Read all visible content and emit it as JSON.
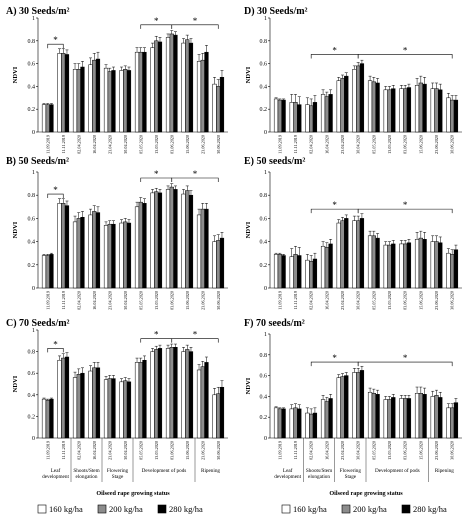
{
  "legend": [
    {
      "label": "160 kg/ha",
      "color": "#ffffff"
    },
    {
      "label": "200 kg/ha",
      "color": "#8c8c8c"
    },
    {
      "label": "280 kg/ha",
      "color": "#000000"
    }
  ],
  "chart_data": [
    {
      "type": "bar",
      "title": "A) 30 Seeds/m²",
      "ylabel": "NDVI",
      "ylim": [
        0,
        1
      ],
      "categories": [
        "11.09.2019",
        "11.11.2019",
        "02.04.2020",
        "16.04.2020",
        "23.04.2020",
        "30.04.2020",
        "05.05.2020",
        "13.05.2020",
        "03.06.2020",
        "15.06.2020",
        "23.06.2020",
        "30.06.2020"
      ],
      "series": [
        {
          "name": "160 kg/ha",
          "values": [
            0.24,
            0.69,
            0.55,
            0.59,
            0.56,
            0.54,
            0.7,
            0.74,
            0.83,
            0.78,
            0.62,
            0.42
          ]
        },
        {
          "name": "200 kg/ha",
          "values": [
            0.24,
            0.69,
            0.55,
            0.63,
            0.53,
            0.55,
            0.7,
            0.8,
            0.86,
            0.81,
            0.63,
            0.4
          ]
        },
        {
          "name": "280 kg/ha",
          "values": [
            0.24,
            0.68,
            0.57,
            0.64,
            0.54,
            0.54,
            0.7,
            0.79,
            0.85,
            0.78,
            0.7,
            0.48
          ]
        }
      ],
      "errors": [
        0.01,
        0.04,
        0.05,
        0.06,
        0.03,
        0.03,
        0.04,
        0.04,
        0.03,
        0.04,
        0.06,
        0.06
      ],
      "annotations": [
        {
          "from": 0,
          "to": 1,
          "text": "*"
        },
        {
          "from": 6,
          "to": 8,
          "text": "*"
        },
        {
          "from": 8,
          "to": 11,
          "text": "*"
        }
      ]
    },
    {
      "type": "bar",
      "title": "B) 50 Seeds/m²",
      "ylabel": "NDVI",
      "ylim": [
        0,
        1
      ],
      "categories": [
        "11.09.2019",
        "11.11.2019",
        "02.04.2020",
        "16.04.2020",
        "23.04.2020",
        "30.04.2020",
        "05.05.2020",
        "13.05.2020",
        "03.06.2020",
        "15.06.2020",
        "23.06.2020",
        "30.06.2020"
      ],
      "series": [
        {
          "name": "160 kg/ha",
          "values": [
            0.28,
            0.73,
            0.57,
            0.63,
            0.54,
            0.56,
            0.7,
            0.82,
            0.85,
            0.81,
            0.63,
            0.4
          ]
        },
        {
          "name": "200 kg/ha",
          "values": [
            0.28,
            0.73,
            0.6,
            0.66,
            0.55,
            0.57,
            0.74,
            0.83,
            0.87,
            0.84,
            0.68,
            0.41
          ]
        },
        {
          "name": "280 kg/ha",
          "values": [
            0.29,
            0.71,
            0.61,
            0.65,
            0.55,
            0.56,
            0.73,
            0.82,
            0.85,
            0.8,
            0.68,
            0.43
          ]
        }
      ],
      "errors": [
        0.01,
        0.04,
        0.05,
        0.05,
        0.03,
        0.03,
        0.04,
        0.03,
        0.03,
        0.04,
        0.05,
        0.05
      ],
      "annotations": [
        {
          "from": 0,
          "to": 1,
          "text": "*"
        },
        {
          "from": 6,
          "to": 8,
          "text": "*"
        },
        {
          "from": 8,
          "to": 11,
          "text": "*"
        }
      ]
    },
    {
      "type": "bar",
      "title": "C) 70 Seeds/m²",
      "ylabel": "NDVI",
      "ylim": [
        0,
        1
      ],
      "categories": [
        "11.09.2019",
        "11.11.2019",
        "02.04.2020",
        "16.04.2020",
        "23.04.2020",
        "30.04.2020",
        "05.05.2020",
        "13.05.2020",
        "03.06.2020",
        "15.06.2020",
        "23.06.2020",
        "30.06.2020"
      ],
      "series": [
        {
          "name": "160 kg/ha",
          "values": [
            0.36,
            0.72,
            0.56,
            0.62,
            0.54,
            0.52,
            0.7,
            0.8,
            0.83,
            0.8,
            0.63,
            0.4
          ]
        },
        {
          "name": "200 kg/ha",
          "values": [
            0.35,
            0.74,
            0.59,
            0.65,
            0.55,
            0.53,
            0.7,
            0.82,
            0.84,
            0.82,
            0.66,
            0.41
          ]
        },
        {
          "name": "280 kg/ha",
          "values": [
            0.36,
            0.75,
            0.6,
            0.65,
            0.55,
            0.52,
            0.72,
            0.83,
            0.84,
            0.8,
            0.7,
            0.47
          ]
        }
      ],
      "errors": [
        0.01,
        0.04,
        0.05,
        0.05,
        0.03,
        0.03,
        0.04,
        0.03,
        0.03,
        0.04,
        0.05,
        0.06
      ],
      "annotations": [
        {
          "from": 0,
          "to": 1,
          "text": "*"
        },
        {
          "from": 6,
          "to": 8,
          "text": "*"
        },
        {
          "from": 8,
          "to": 11,
          "text": "*"
        }
      ]
    },
    {
      "type": "bar",
      "title": "D) 30 Seeds/m²",
      "ylabel": "NDVI",
      "ylim": [
        0,
        1
      ],
      "categories": [
        "11.09.2019",
        "11.11.2019",
        "02.04.2020",
        "16.04.2020",
        "23.04.2020",
        "30.04.2020",
        "05.05.2020",
        "13.05.2020",
        "03.06.2020",
        "15.06.2020",
        "23.06.2020",
        "30.06.2020"
      ],
      "series": [
        {
          "name": "160 kg/ha",
          "values": [
            0.29,
            0.26,
            0.24,
            0.33,
            0.45,
            0.55,
            0.45,
            0.37,
            0.38,
            0.41,
            0.38,
            0.3
          ]
        },
        {
          "name": "200 kg/ha",
          "values": [
            0.28,
            0.26,
            0.23,
            0.31,
            0.47,
            0.58,
            0.44,
            0.37,
            0.38,
            0.43,
            0.38,
            0.28
          ]
        },
        {
          "name": "280 kg/ha",
          "values": [
            0.28,
            0.24,
            0.26,
            0.33,
            0.49,
            0.6,
            0.43,
            0.38,
            0.39,
            0.42,
            0.37,
            0.28
          ]
        }
      ],
      "errors": [
        0.01,
        0.07,
        0.06,
        0.04,
        0.03,
        0.03,
        0.04,
        0.03,
        0.03,
        0.06,
        0.05,
        0.04
      ],
      "annotations": [
        {
          "from": 2,
          "to": 5,
          "text": "*"
        },
        {
          "from": 5,
          "to": 11,
          "text": "*"
        }
      ]
    },
    {
      "type": "bar",
      "title": "E) 50 seeds/m²",
      "ylabel": "NDVI",
      "ylim": [
        0,
        1
      ],
      "categories": [
        "11.09.2019",
        "11.11.2019",
        "02.04.2020",
        "16.04.2020",
        "23.04.2020",
        "30.04.2020",
        "05.05.2020",
        "13.05.2020",
        "03.06.2020",
        "15.06.2020",
        "23.06.2020",
        "30.06.2020"
      ],
      "series": [
        {
          "name": "160 kg/ha",
          "values": [
            0.29,
            0.27,
            0.24,
            0.36,
            0.56,
            0.58,
            0.45,
            0.37,
            0.38,
            0.42,
            0.4,
            0.3
          ]
        },
        {
          "name": "200 kg/ha",
          "values": [
            0.29,
            0.29,
            0.23,
            0.35,
            0.58,
            0.58,
            0.45,
            0.37,
            0.38,
            0.43,
            0.4,
            0.29
          ]
        },
        {
          "name": "280 kg/ha",
          "values": [
            0.28,
            0.28,
            0.25,
            0.38,
            0.6,
            0.6,
            0.43,
            0.38,
            0.39,
            0.42,
            0.39,
            0.33
          ]
        }
      ],
      "errors": [
        0.01,
        0.07,
        0.05,
        0.04,
        0.03,
        0.04,
        0.04,
        0.03,
        0.03,
        0.06,
        0.05,
        0.04
      ],
      "annotations": [
        {
          "from": 2,
          "to": 5,
          "text": "*"
        },
        {
          "from": 5,
          "to": 11,
          "text": "*"
        }
      ]
    },
    {
      "type": "bar",
      "title": "F) 70 seeds/m²",
      "ylabel": "NDVI",
      "ylim": [
        0,
        1
      ],
      "categories": [
        "11.09.2019",
        "11.11.2019",
        "02.04.2020",
        "16.04.2020",
        "23.04.2020",
        "30.04.2020",
        "05.05.2020",
        "13.05.2020",
        "03.06.2020",
        "15.06.2020",
        "23.06.2020",
        "30.06.2020"
      ],
      "series": [
        {
          "name": "160 kg/ha",
          "values": [
            0.29,
            0.28,
            0.24,
            0.37,
            0.58,
            0.63,
            0.44,
            0.37,
            0.38,
            0.43,
            0.4,
            0.29
          ]
        },
        {
          "name": "200 kg/ha",
          "values": [
            0.28,
            0.29,
            0.23,
            0.35,
            0.59,
            0.63,
            0.43,
            0.37,
            0.38,
            0.43,
            0.41,
            0.29
          ]
        },
        {
          "name": "280 kg/ha",
          "values": [
            0.28,
            0.28,
            0.24,
            0.38,
            0.6,
            0.65,
            0.42,
            0.39,
            0.38,
            0.42,
            0.39,
            0.34
          ]
        }
      ],
      "errors": [
        0.01,
        0.04,
        0.05,
        0.04,
        0.03,
        0.04,
        0.04,
        0.03,
        0.03,
        0.06,
        0.05,
        0.04
      ],
      "annotations": [
        {
          "from": 2,
          "to": 5,
          "text": "*"
        },
        {
          "from": 5,
          "to": 11,
          "text": "*"
        }
      ]
    }
  ],
  "stages": {
    "left": [
      "Leaf|development",
      "Shoots/Stem|elongation",
      "Flowering|Stage",
      "Development of pods",
      "Ripening"
    ],
    "right": [
      "Leaf|development",
      "Shoots/Stem|elongation",
      "Flowering|Stage",
      "Development of pods",
      "Ripening"
    ]
  },
  "xtitle_left": "Oilseed rape growing status",
  "xtitle_right": "Oilseed rape growing status",
  "yticks": [
    "0",
    "0.2",
    "0.4",
    "0.6",
    "0.8",
    "1"
  ]
}
